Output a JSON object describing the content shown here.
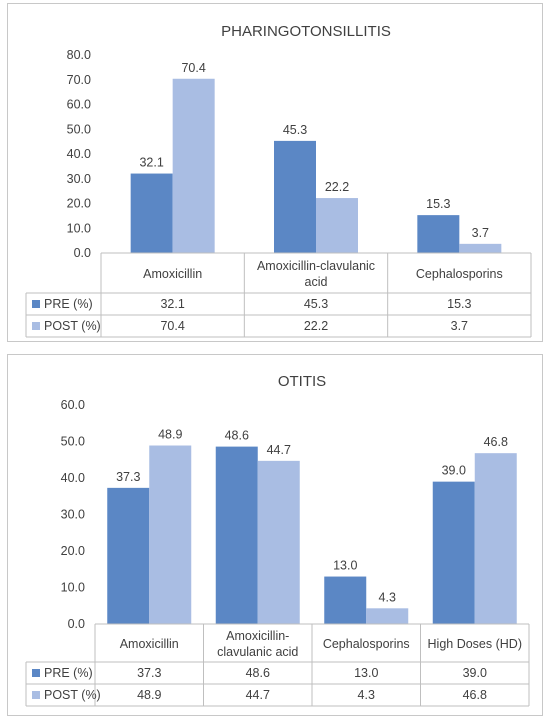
{
  "colors": {
    "pre": "#5b87c5",
    "post": "#a9bde3",
    "grid": "#bfbfbf",
    "text": "#404040"
  },
  "chart_data": [
    {
      "type": "bar",
      "title": "PHARINGOTONSILLITIS",
      "categories": [
        "Amoxicillin",
        "Amoxicillin-clavulanic acid",
        "Cephalosporins"
      ],
      "category_lines": [
        [
          "Amoxicillin"
        ],
        [
          "Amoxicillin-clavulanic",
          "acid"
        ],
        [
          "Cephalosporins"
        ]
      ],
      "series": [
        {
          "name": "PRE (%)",
          "values": [
            32.1,
            45.3,
            15.3
          ]
        },
        {
          "name": "POST (%)",
          "values": [
            70.4,
            22.2,
            3.7
          ]
        }
      ],
      "ylim": [
        0,
        80
      ],
      "yticks": [
        "0.0",
        "10.0",
        "20.0",
        "30.0",
        "40.0",
        "50.0",
        "60.0",
        "70.0",
        "80.0"
      ],
      "value_labels": [
        [
          "32.1",
          "45.3",
          "15.3"
        ],
        [
          "70.4",
          "22.2",
          "3.7"
        ]
      ],
      "data_table": true,
      "grid": false
    },
    {
      "type": "bar",
      "title": "OTITIS",
      "categories": [
        "Amoxicillin",
        "Amoxicillin-clavulanic acid",
        "Cephalosporins",
        "High Doses (HD)"
      ],
      "category_lines": [
        [
          "Amoxicillin"
        ],
        [
          "Amoxicillin-",
          "clavulanic acid"
        ],
        [
          "Cephalosporins"
        ],
        [
          "High Doses (HD)"
        ]
      ],
      "series": [
        {
          "name": "PRE (%)",
          "values": [
            37.3,
            48.6,
            13.0,
            39.0
          ]
        },
        {
          "name": "POST (%)",
          "values": [
            48.9,
            44.7,
            4.3,
            46.8
          ]
        }
      ],
      "ylim": [
        0,
        60
      ],
      "yticks": [
        "0.0",
        "10.0",
        "20.0",
        "30.0",
        "40.0",
        "50.0",
        "60.0"
      ],
      "value_labels": [
        [
          "37.3",
          "48.6",
          "13.0",
          "39.0"
        ],
        [
          "48.9",
          "44.7",
          "4.3",
          "46.8"
        ]
      ],
      "data_table": true,
      "grid": false
    }
  ]
}
